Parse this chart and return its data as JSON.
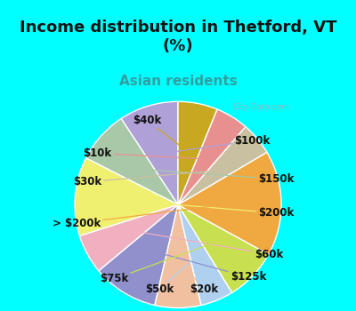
{
  "title": "Income distribution in Thetford, VT\n(%)",
  "subtitle": "Asian residents",
  "title_fontsize": 13,
  "subtitle_fontsize": 11,
  "background_color": "#00FFFF",
  "watermark": "City-Data.com",
  "labels": [
    "$100k",
    "$150k",
    "$200k",
    "$60k",
    "$125k",
    "$20k",
    "$50k",
    "$75k",
    "> $200k",
    "$30k",
    "$10k",
    "$40k"
  ],
  "sizes": [
    9,
    8,
    12,
    6,
    10,
    7,
    5,
    8,
    16,
    5,
    5,
    6
  ],
  "colors": [
    "#b0a0d8",
    "#a8c8a8",
    "#f0f070",
    "#f0b0c0",
    "#9090cc",
    "#f0c0a0",
    "#b0d0f0",
    "#c8e050",
    "#f0a840",
    "#c8c0a0",
    "#e89090",
    "#c8a820"
  ],
  "label_fontsize": 8.5,
  "startangle": 90,
  "chart_bg_color": "#e0f5e8"
}
